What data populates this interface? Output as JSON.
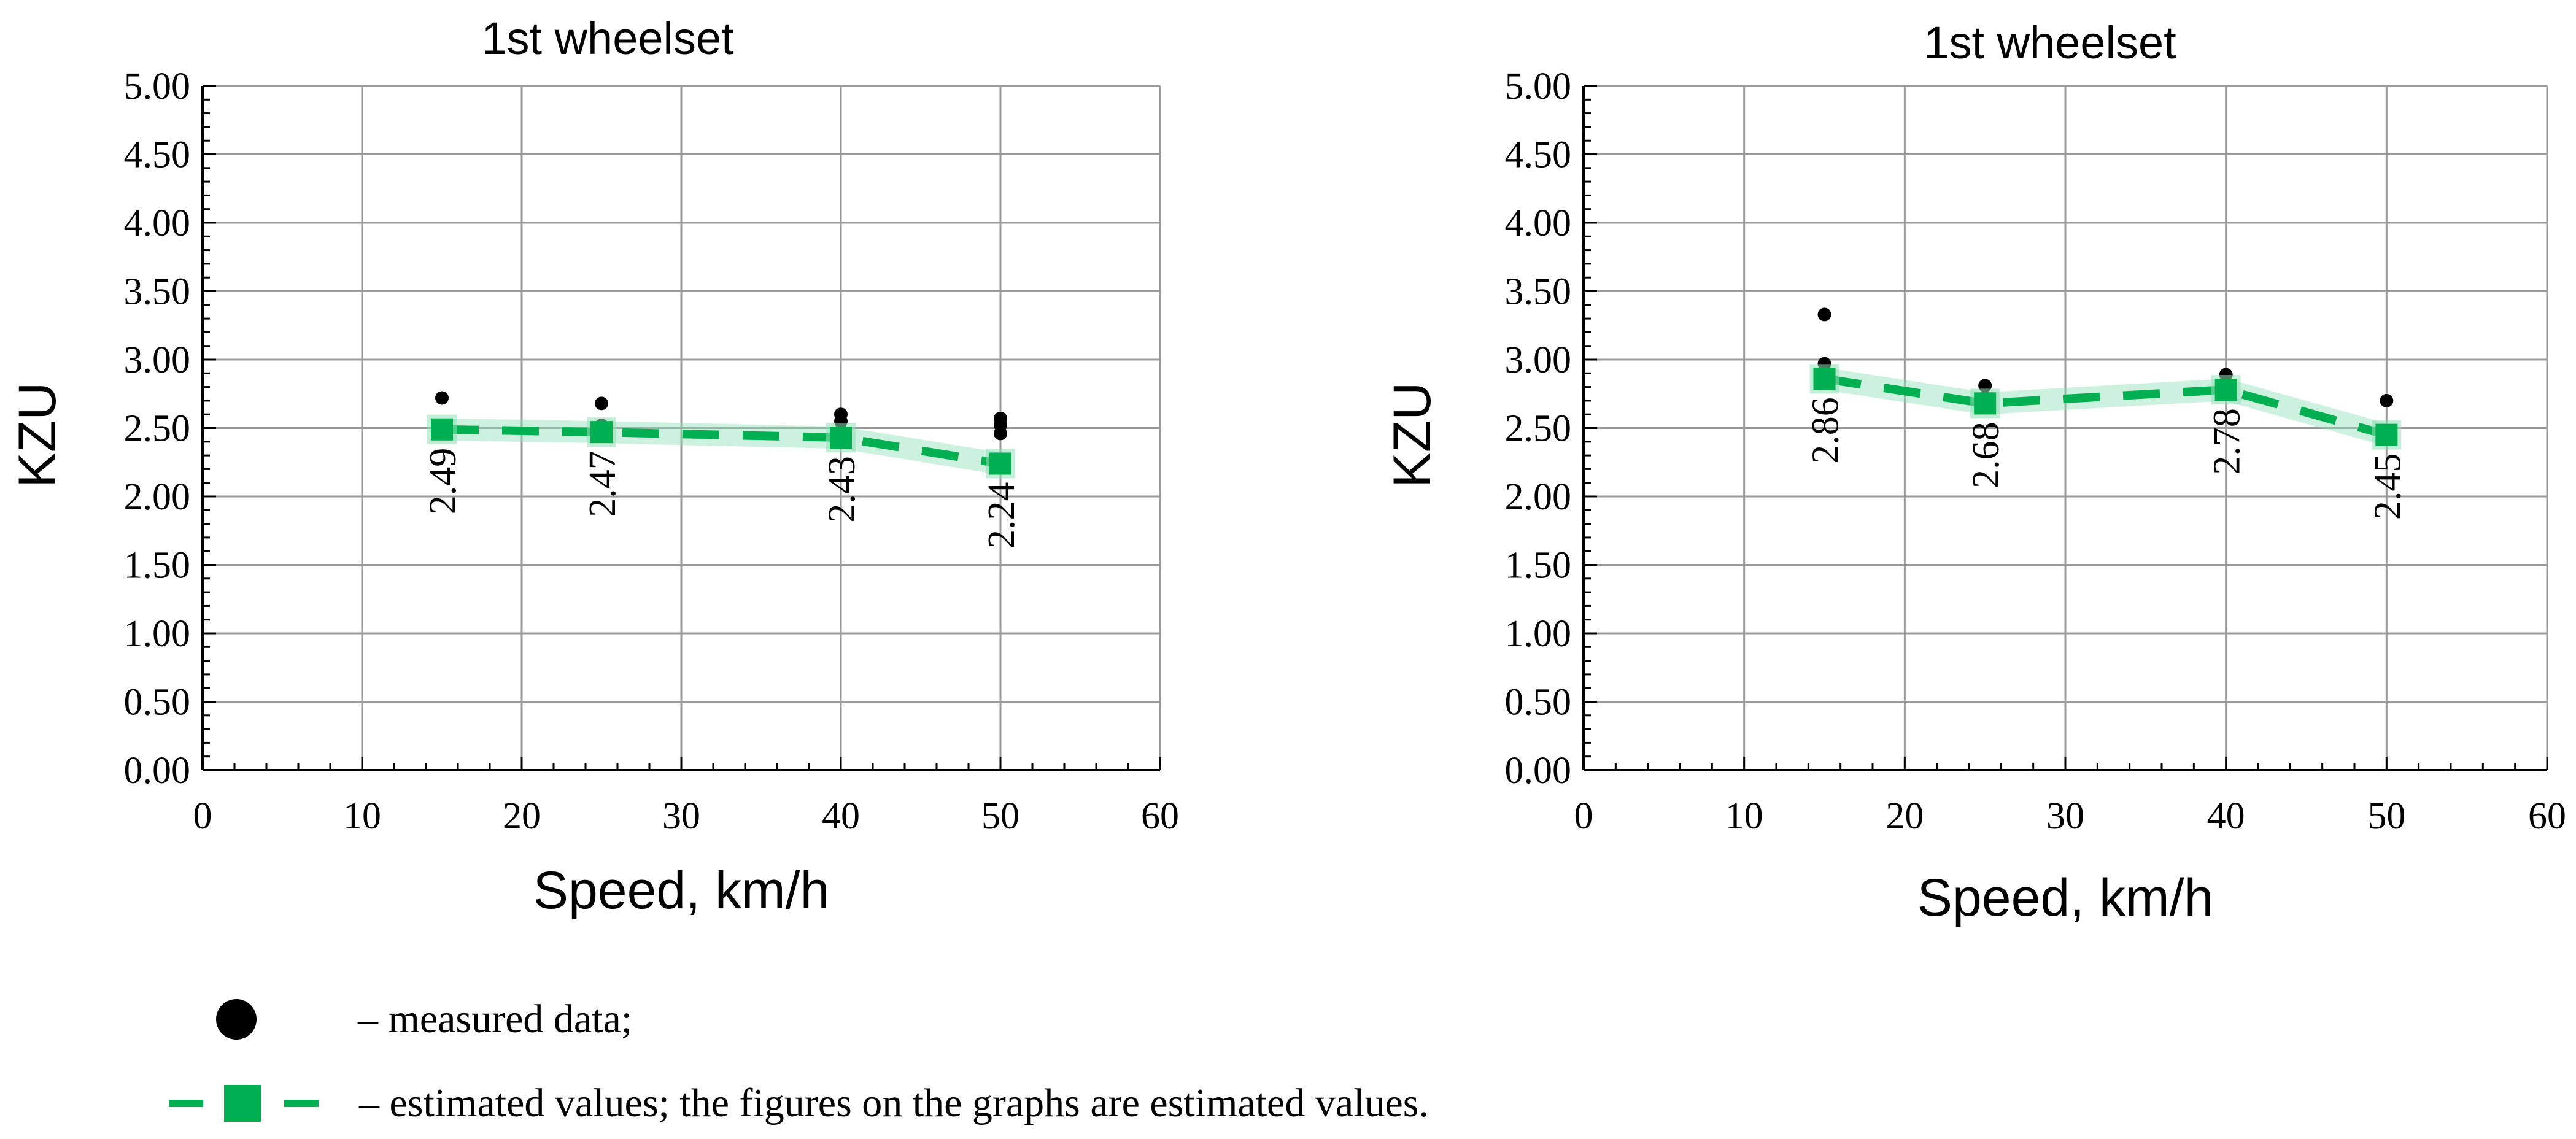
{
  "chart_data": [
    {
      "type": "line",
      "title": "1st wheelset",
      "xlabel": "Speed, km/h",
      "ylabel": "KZU",
      "xlim": [
        0,
        60
      ],
      "ylim": [
        0,
        5
      ],
      "xticks": [
        "0",
        "10",
        "20",
        "30",
        "40",
        "50",
        "60"
      ],
      "yticks": [
        "0.00",
        "0.50",
        "1.00",
        "1.50",
        "2.00",
        "2.50",
        "3.00",
        "3.50",
        "4.00",
        "4.50",
        "5.00"
      ],
      "grid": true,
      "series": [
        {
          "kind": "measured",
          "x": [
            15,
            15,
            25,
            25,
            40,
            40,
            40,
            40,
            50,
            50,
            50
          ],
          "y": [
            2.72,
            2.5,
            2.68,
            2.52,
            2.6,
            2.55,
            2.48,
            2.45,
            2.57,
            2.52,
            2.46
          ]
        },
        {
          "kind": "estimated",
          "x": [
            15,
            25,
            40,
            50
          ],
          "y": [
            2.49,
            2.47,
            2.43,
            2.24
          ],
          "labels": [
            "2.49",
            "2.47",
            "2.43",
            "2.24"
          ]
        }
      ]
    },
    {
      "type": "line",
      "title": "1st wheelset",
      "xlabel": "Speed, km/h",
      "ylabel": "KZU",
      "xlim": [
        0,
        60
      ],
      "ylim": [
        0,
        5
      ],
      "xticks": [
        "0",
        "10",
        "20",
        "30",
        "40",
        "50",
        "60"
      ],
      "yticks": [
        "0.00",
        "0.50",
        "1.00",
        "1.50",
        "2.00",
        "2.50",
        "3.00",
        "3.50",
        "4.00",
        "4.50",
        "5.00"
      ],
      "grid": true,
      "series": [
        {
          "kind": "measured",
          "x": [
            15,
            15,
            15,
            25,
            25,
            40,
            40,
            50,
            50
          ],
          "y": [
            3.33,
            2.97,
            2.92,
            2.81,
            2.72,
            2.89,
            2.83,
            2.7,
            2.47
          ],
          "labels": []
        },
        {
          "kind": "estimated",
          "x": [
            15,
            25,
            40,
            50
          ],
          "y": [
            2.86,
            2.68,
            2.78,
            2.45
          ],
          "labels": [
            "2.86",
            "2.68",
            "2.78",
            "2.45"
          ]
        }
      ]
    }
  ],
  "legend": {
    "measured_text": "– measured data;",
    "estimated_text": "– estimated values; the figures on the graphs are estimated values."
  },
  "colors": {
    "estimated": "#00b050",
    "estimated_glow": "#8fe0b8",
    "measured": "#000000",
    "grid": "#9a9a9a"
  }
}
